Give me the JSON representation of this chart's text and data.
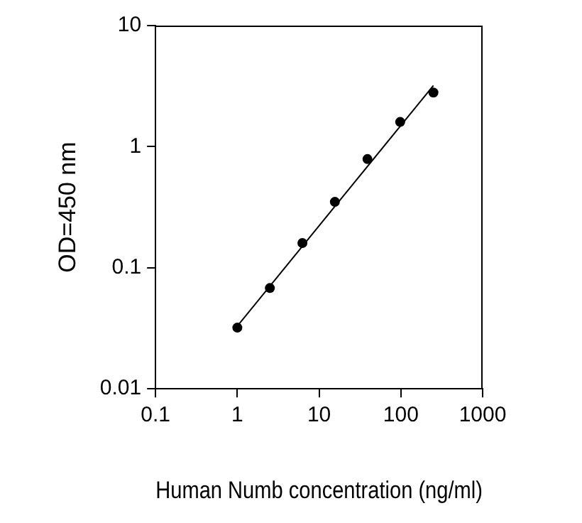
{
  "chart_data": {
    "type": "scatter",
    "xlabel": "Human Numb concentration (ng/ml)",
    "ylabel": "OD=450 nm",
    "log": "xy",
    "grid": false,
    "legend": false,
    "marker": "circle",
    "xlim": [
      0.1,
      1000
    ],
    "xticks": [
      0.1,
      1,
      10,
      100,
      1000
    ],
    "ylim": [
      0.01,
      10
    ],
    "yticks": [
      0.01,
      0.1,
      1,
      10
    ],
    "series": [
      {
        "color": "#000000",
        "x": [
          1,
          2.5,
          6.25,
          15.6,
          39,
          98,
          250
        ],
        "values": [
          0.032,
          0.068,
          0.16,
          0.35,
          0.79,
          1.6,
          2.8
        ]
      },
      {
        "type": "line",
        "color": "#000000",
        "marker": "none",
        "x": [
          1,
          250
        ],
        "values": [
          0.033,
          3.2
        ]
      }
    ]
  }
}
